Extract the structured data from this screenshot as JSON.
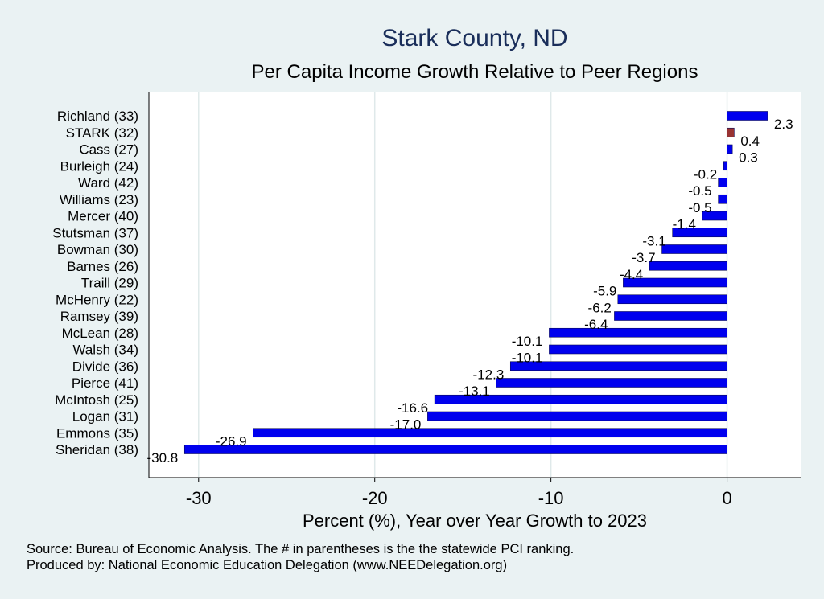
{
  "chart_data": {
    "type": "bar",
    "orientation": "horizontal",
    "title": "Stark County, ND",
    "subtitle": "Per Capita Income Growth Relative to Peer Regions",
    "xlabel": "Percent (%), Year over Year Growth to 2023",
    "ylabel": "",
    "xlim": [
      -32,
      3.4
    ],
    "xticks": [
      -30,
      -20,
      -10,
      0
    ],
    "grid": true,
    "categories": [
      "Richland (33)",
      "STARK (32)",
      "Cass (27)",
      "Burleigh (24)",
      "Ward (42)",
      "Williams (23)",
      "Mercer (40)",
      "Stutsman (37)",
      "Bowman (30)",
      "Barnes (26)",
      "Traill (29)",
      "McHenry (22)",
      "Ramsey (39)",
      "McLean (28)",
      "Walsh (34)",
      "Divide (36)",
      "Pierce (41)",
      "McIntosh (25)",
      "Logan (31)",
      "Emmons (35)",
      "Sheridan (38)"
    ],
    "values": [
      2.3,
      0.4,
      0.3,
      -0.2,
      -0.5,
      -0.5,
      -1.4,
      -3.1,
      -3.7,
      -4.4,
      -5.9,
      -6.2,
      -6.4,
      -10.1,
      -10.1,
      -12.3,
      -13.1,
      -16.6,
      -17.0,
      -26.9,
      -30.8
    ],
    "value_labels": [
      "2.3",
      "0.4",
      "0.3",
      "-0.2",
      "-0.5",
      "-0.5",
      "-1.4",
      "-3.1",
      "-3.7",
      "-4.4",
      "-5.9",
      "-6.2",
      "-6.4",
      "-10.1",
      "-10.1",
      "-12.3",
      "-13.1",
      "-16.6",
      "-17.0",
      "-26.9",
      "-30.8"
    ],
    "highlight": "STARK (32)",
    "colors": {
      "bar": "#0000ee",
      "highlight": "#993333",
      "grid": "#ffffff",
      "plot_bg": "#ffffff",
      "background": "#eaf2f3"
    }
  },
  "footnotes": {
    "source": "Source: Bureau of Economic Analysis. The # in parentheses is the the statewide PCI ranking.",
    "producer": "Produced by: National Economic Education Delegation (www.NEEDelegation.org)"
  }
}
